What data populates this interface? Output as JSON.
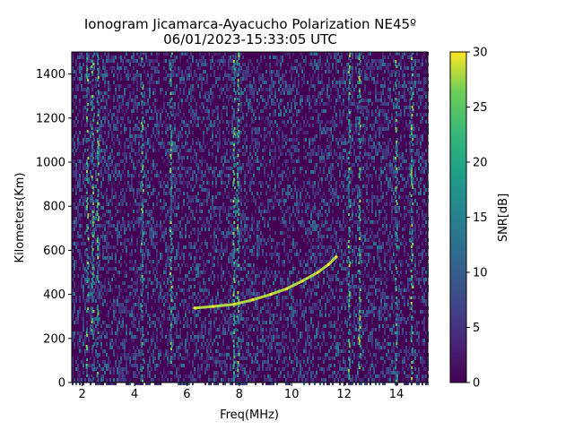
{
  "chart_data": {
    "type": "heatmap",
    "title": "Ionogram Jicamarca-Ayacucho Polarization NE45º",
    "subtitle": "06/01/2023-15:33:05 UTC",
    "xlabel": "Freq(MHz)",
    "ylabel": "Kilometers(Km)",
    "xlim": [
      1.6,
      15.2
    ],
    "ylim": [
      0,
      1500
    ],
    "x_ticks": [
      2,
      4,
      6,
      8,
      10,
      12,
      14
    ],
    "x_tick_labels": [
      "2",
      "4",
      "6",
      "8",
      "10",
      "12",
      "14"
    ],
    "y_ticks": [
      0,
      200,
      400,
      600,
      800,
      1000,
      1200,
      1400
    ],
    "y_tick_labels": [
      "0",
      "200",
      "400",
      "600",
      "800",
      "1000",
      "1200",
      "1400"
    ],
    "colorbar": {
      "label": "SNR[dB]",
      "range": [
        0,
        30
      ],
      "ticks": [
        0,
        5,
        10,
        15,
        20,
        25,
        30
      ],
      "tick_labels": [
        "0",
        "5",
        "10",
        "15",
        "20",
        "25",
        "30"
      ],
      "colormap": "viridis"
    },
    "vertical_interference_bands_mhz": [
      2.2,
      2.4,
      2.6,
      4.3,
      5.4,
      7.8,
      7.95,
      12.2,
      12.6,
      14.0,
      14.6
    ],
    "echo_trace": {
      "freq_mhz": [
        6.3,
        7.0,
        7.8,
        8.5,
        9.2,
        9.8,
        10.4,
        11.0,
        11.4,
        11.7
      ],
      "height_km": [
        338,
        345,
        355,
        375,
        400,
        425,
        460,
        500,
        535,
        570
      ],
      "snr_db": 28
    }
  }
}
